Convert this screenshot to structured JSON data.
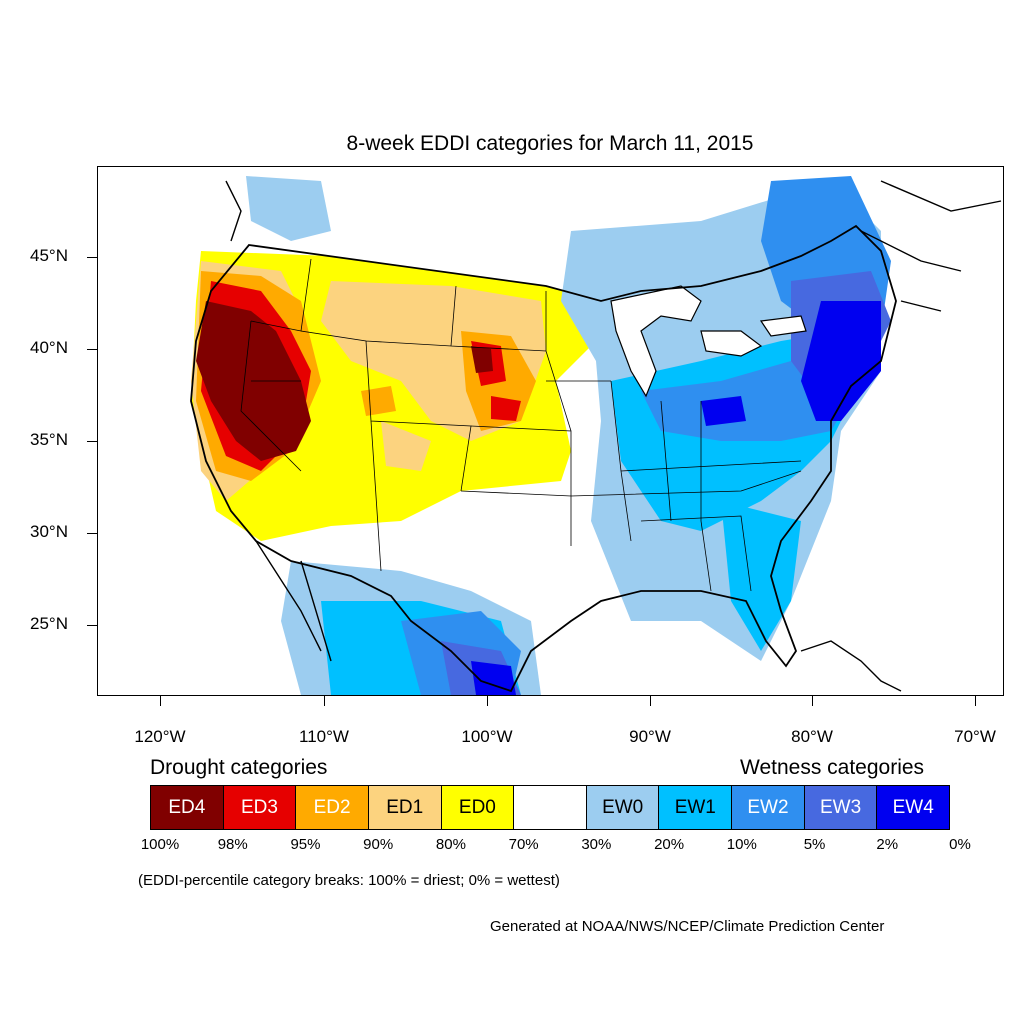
{
  "title": "8-week EDDI categories for March 11, 2015",
  "lat_labels": [
    "45°N",
    "40°N",
    "35°N",
    "30°N",
    "25°N"
  ],
  "lon_labels": [
    "120°W",
    "110°W",
    "100°W",
    "90°W",
    "80°W",
    "70°W"
  ],
  "legend": {
    "drought_title": "Drought categories",
    "wetness_title": "Wetness categories",
    "categories": [
      {
        "label": "ED4",
        "color": "#800000",
        "text_color": "#ffffff"
      },
      {
        "label": "ED3",
        "color": "#e60000",
        "text_color": "#ffffff"
      },
      {
        "label": "ED2",
        "color": "#ffaa00",
        "text_color": "#ffffff"
      },
      {
        "label": "ED1",
        "color": "#fcd37f",
        "text_color": "#000000"
      },
      {
        "label": "ED0",
        "color": "#ffff00",
        "text_color": "#000000"
      },
      {
        "label": "",
        "color": "#ffffff",
        "text_color": "#000000"
      },
      {
        "label": "EW0",
        "color": "#9ccdf0",
        "text_color": "#000000"
      },
      {
        "label": "EW1",
        "color": "#00c0ff",
        "text_color": "#000000"
      },
      {
        "label": "EW2",
        "color": "#2f8ff0",
        "text_color": "#ffffff"
      },
      {
        "label": "EW3",
        "color": "#4769e0",
        "text_color": "#ffffff"
      },
      {
        "label": "EW4",
        "color": "#0000f0",
        "text_color": "#ffffff"
      }
    ],
    "breaks": [
      "100%",
      "98%",
      "95%",
      "90%",
      "80%",
      "70%",
      "30%",
      "20%",
      "10%",
      "5%",
      "2%",
      "0%"
    ]
  },
  "note": "(EDDI-percentile category breaks: 100% = driest; 0% = wettest)",
  "credit": "Generated at NOAA/NWS/NCEP/Climate Prediction Center"
}
